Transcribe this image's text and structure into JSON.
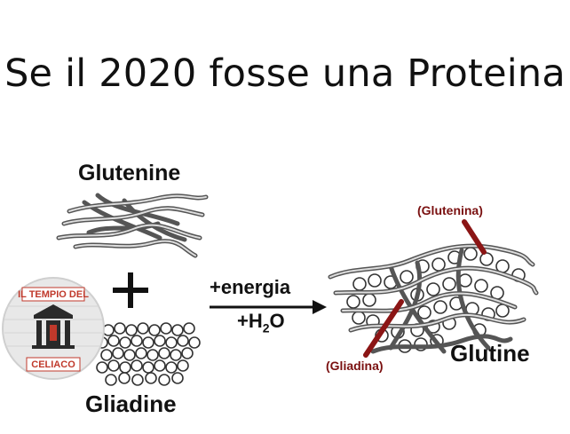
{
  "title": "Se il 2020 fosse una Proteina",
  "labels": {
    "glutenine": "Glutenine",
    "gliadine": "Gliadine",
    "glutine": "Glutine",
    "energia": "+energia",
    "water_main": "+H",
    "water_sub": "2",
    "water_end": "O",
    "glutenina": "(Glutenina)",
    "gliadina": "(Gliadina)"
  },
  "logo": {
    "top_text": "IL TEMPIO DEL",
    "bottom_text": "CELIACO"
  },
  "plus_sign": "+",
  "colors": {
    "red": "#8b1515",
    "strand": "#555555",
    "text": "#111111"
  }
}
